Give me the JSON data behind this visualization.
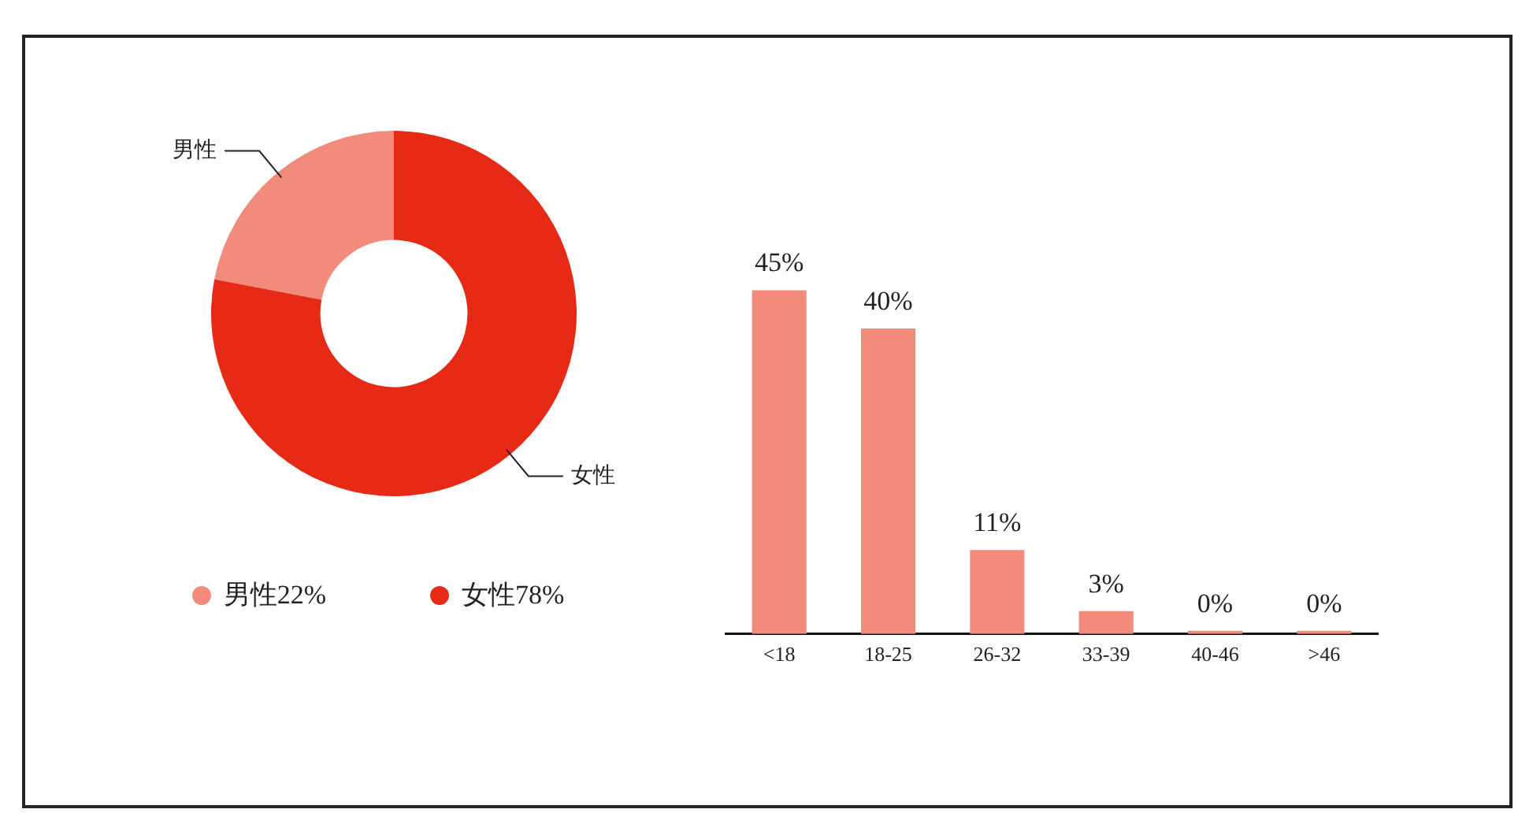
{
  "chart_data": [
    {
      "type": "donut",
      "categories": [
        "男性",
        "女性"
      ],
      "values": [
        22,
        78
      ],
      "colors": [
        "#f28b7c",
        "#e62a16"
      ],
      "value_labels": [
        "22%",
        "78%"
      ],
      "legend": "bottom"
    },
    {
      "type": "bar",
      "categories": [
        "<18",
        "18-25",
        "26-32",
        "33-39",
        "40-46",
        ">46"
      ],
      "values": [
        45,
        40,
        11,
        3,
        0,
        0
      ],
      "color": "#f28b7c",
      "value_labels": [
        "45%",
        "40%",
        "11%",
        "3%",
        "0%",
        "0%"
      ],
      "grid": false,
      "legend": false
    }
  ]
}
